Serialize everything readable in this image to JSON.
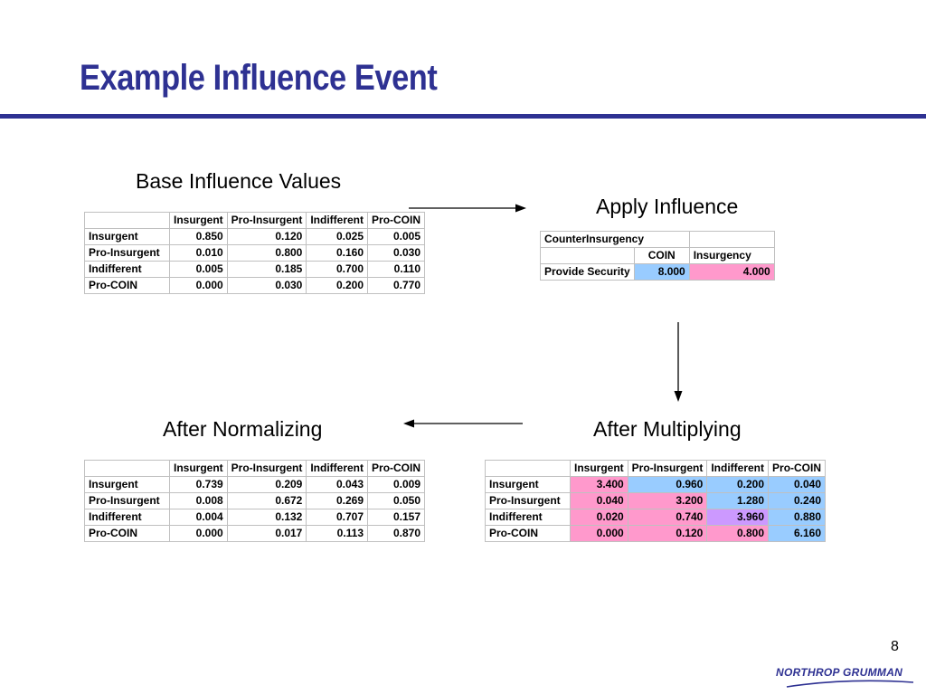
{
  "slide": {
    "title": "Example Influence Event",
    "page_number": "8"
  },
  "captions": {
    "base": "Base Influence Values",
    "apply": "Apply Influence",
    "multiplying": "After Multiplying",
    "normalizing": "After Normalizing"
  },
  "column_headers": [
    "Insurgent",
    "Pro-Insurgent",
    "Indifferent",
    "Pro-COIN"
  ],
  "base_table": {
    "rows": [
      {
        "label": "Insurgent",
        "values": [
          "0.850",
          "0.120",
          "0.025",
          "0.005"
        ]
      },
      {
        "label": "Pro-Insurgent",
        "values": [
          "0.010",
          "0.800",
          "0.160",
          "0.030"
        ]
      },
      {
        "label": "Indifferent",
        "values": [
          "0.005",
          "0.185",
          "0.700",
          "0.110"
        ]
      },
      {
        "label": "Pro-COIN",
        "values": [
          "0.000",
          "0.030",
          "0.200",
          "0.770"
        ]
      }
    ]
  },
  "influence_table": {
    "group": "CounterInsurgency",
    "headers": [
      "COIN",
      "Insurgency"
    ],
    "row_label": "Provide Security",
    "values": [
      "8.000",
      "4.000"
    ]
  },
  "multiplied_table": {
    "rows": [
      {
        "label": "Insurgent",
        "values": [
          "3.400",
          "0.960",
          "0.200",
          "0.040"
        ]
      },
      {
        "label": "Pro-Insurgent",
        "values": [
          "0.040",
          "3.200",
          "1.280",
          "0.240"
        ]
      },
      {
        "label": "Indifferent",
        "values": [
          "0.020",
          "0.740",
          "3.960",
          "0.880"
        ]
      },
      {
        "label": "Pro-COIN",
        "values": [
          "0.000",
          "0.120",
          "0.800",
          "6.160"
        ]
      }
    ]
  },
  "normalized_table": {
    "rows": [
      {
        "label": "Insurgent",
        "values": [
          "0.739",
          "0.209",
          "0.043",
          "0.009"
        ]
      },
      {
        "label": "Pro-Insurgent",
        "values": [
          "0.008",
          "0.672",
          "0.269",
          "0.050"
        ]
      },
      {
        "label": "Indifferent",
        "values": [
          "0.004",
          "0.132",
          "0.707",
          "0.157"
        ]
      },
      {
        "label": "Pro-COIN",
        "values": [
          "0.000",
          "0.017",
          "0.113",
          "0.870"
        ]
      }
    ]
  },
  "colors": {
    "title": "#2e3192",
    "pink": "#ff99cc",
    "blue": "#99ccff",
    "lavender": "#cc99ff"
  },
  "logo_text": "NORTHROP GRUMMAN"
}
